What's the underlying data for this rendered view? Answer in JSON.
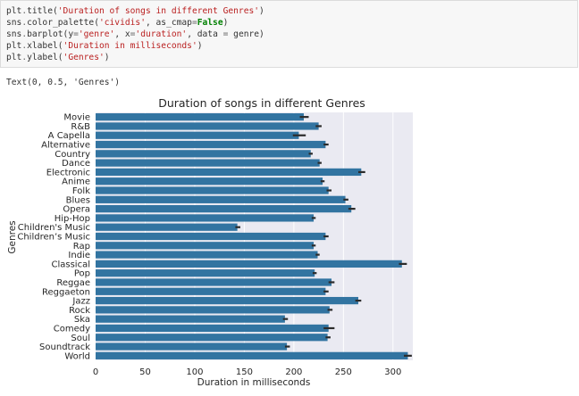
{
  "code_cell": {
    "lines": [
      [
        {
          "t": "plt",
          "c": ""
        },
        {
          "t": ".",
          "c": "op"
        },
        {
          "t": "title(",
          "c": ""
        },
        {
          "t": "'Duration of songs in different Genres'",
          "c": "str"
        },
        {
          "t": ")",
          "c": ""
        }
      ],
      [
        {
          "t": "sns",
          "c": ""
        },
        {
          "t": ".",
          "c": "op"
        },
        {
          "t": "color_palette(",
          "c": ""
        },
        {
          "t": "'cividis'",
          "c": "str"
        },
        {
          "t": ", as_cmap",
          "c": ""
        },
        {
          "t": "=",
          "c": "op"
        },
        {
          "t": "False",
          "c": "kw"
        },
        {
          "t": ")",
          "c": ""
        }
      ],
      [
        {
          "t": "sns",
          "c": ""
        },
        {
          "t": ".",
          "c": "op"
        },
        {
          "t": "barplot(y",
          "c": ""
        },
        {
          "t": "=",
          "c": "op"
        },
        {
          "t": "'genre'",
          "c": "str"
        },
        {
          "t": ", x",
          "c": ""
        },
        {
          "t": "=",
          "c": "op"
        },
        {
          "t": "'duration'",
          "c": "str"
        },
        {
          "t": ", data ",
          "c": ""
        },
        {
          "t": "=",
          "c": "op"
        },
        {
          "t": " genre)",
          "c": ""
        }
      ],
      [
        {
          "t": "plt",
          "c": ""
        },
        {
          "t": ".",
          "c": "op"
        },
        {
          "t": "xlabel(",
          "c": ""
        },
        {
          "t": "'Duration in milliseconds'",
          "c": "str"
        },
        {
          "t": ")",
          "c": ""
        }
      ],
      [
        {
          "t": "plt",
          "c": ""
        },
        {
          "t": ".",
          "c": "op"
        },
        {
          "t": "ylabel(",
          "c": ""
        },
        {
          "t": "'Genres'",
          "c": "str"
        },
        {
          "t": ")",
          "c": ""
        }
      ]
    ]
  },
  "output": {
    "text": "Text(0, 0.5, 'Genres')"
  },
  "chart_data": {
    "type": "bar",
    "orientation": "horizontal",
    "title": "Duration of songs in different Genres",
    "xlabel": "Duration in milliseconds",
    "ylabel": "Genres",
    "xlim": [
      0,
      320
    ],
    "xticks": [
      0,
      50,
      100,
      150,
      200,
      250,
      300
    ],
    "grid": true,
    "bar_color": "#3274a1",
    "background_color": "#eaeaf2",
    "categories": [
      "Movie",
      "R&B",
      "A Capella",
      "Alternative",
      "Country",
      "Dance",
      "Electronic",
      "Anime",
      "Folk",
      "Blues",
      "Opera",
      "Hip-Hop",
      "Children's Music",
      "Children’s Music",
      "Rap",
      "Indie",
      "Classical",
      "Pop",
      "Reggae",
      "Reggaeton",
      "Jazz",
      "Rock",
      "Ska",
      "Comedy",
      "Soul",
      "Soundtrack",
      "World"
    ],
    "values": [
      210,
      225,
      205,
      232,
      217,
      226,
      268,
      229,
      235,
      252,
      258,
      220,
      143,
      232,
      220,
      224,
      309,
      221,
      238,
      232,
      265,
      236,
      191,
      235,
      234,
      193,
      315
    ],
    "error_low": [
      206,
      222,
      199,
      230,
      215,
      224,
      265,
      227,
      233,
      250,
      255,
      218,
      141,
      230,
      218,
      222,
      306,
      219,
      235,
      230,
      262,
      234,
      189,
      230,
      232,
      191,
      311
    ],
    "error_high": [
      215,
      228,
      212,
      235,
      219,
      228,
      272,
      231,
      238,
      255,
      262,
      222,
      146,
      235,
      222,
      226,
      314,
      223,
      241,
      235,
      268,
      239,
      194,
      241,
      237,
      196,
      319
    ]
  }
}
